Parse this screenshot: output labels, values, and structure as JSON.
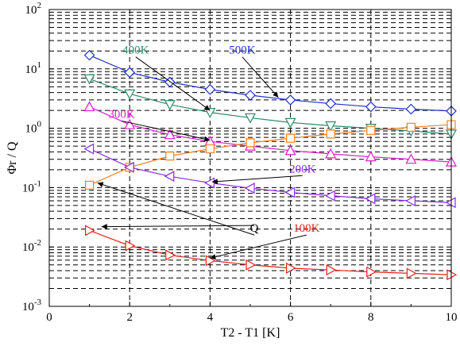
{
  "chart_data": {
    "type": "line",
    "xlabel": "T2 - T1 [K]",
    "ylabel": "Φr / Q",
    "xlim": [
      0,
      10
    ],
    "ylim": [
      0.001,
      100
    ],
    "yscale": "log",
    "grid": true,
    "grid_style": "dashed",
    "x_ticks": [
      "0",
      "2",
      "4",
      "6",
      "8",
      "10"
    ],
    "y_ticks": [
      {
        "base": "10",
        "exp": "-3",
        "value": 0.001
      },
      {
        "base": "10",
        "exp": "-2",
        "value": 0.01
      },
      {
        "base": "10",
        "exp": "-1",
        "value": 0.1
      },
      {
        "base": "10",
        "exp": "0",
        "value": 1
      },
      {
        "base": "10",
        "exp": "1",
        "value": 10
      },
      {
        "base": "10",
        "exp": "2",
        "value": 100
      }
    ],
    "x": [
      1,
      2,
      3,
      4,
      5,
      6,
      7,
      8,
      9,
      10
    ],
    "series": [
      {
        "label": "500K",
        "color": "#1f2fd0",
        "marker": "diamond",
        "values": [
          17.0,
          8.7,
          6.0,
          4.5,
          3.6,
          3.0,
          2.6,
          2.3,
          2.1,
          1.95
        ]
      },
      {
        "label": "400K",
        "color": "#2e8b6a",
        "marker": "triangle-down",
        "values": [
          6.8,
          3.8,
          2.5,
          1.85,
          1.5,
          1.25,
          1.1,
          1.0,
          0.9,
          0.8
        ]
      },
      {
        "label": "300K",
        "color": "#e01fd0",
        "marker": "triangle-up",
        "values": [
          2.3,
          1.15,
          0.78,
          0.6,
          0.5,
          0.42,
          0.37,
          0.33,
          0.3,
          0.27
        ]
      },
      {
        "label": "Q",
        "color": "#f08020",
        "marker": "square",
        "values": [
          0.11,
          0.22,
          0.34,
          0.45,
          0.57,
          0.68,
          0.8,
          0.92,
          1.04,
          1.15
        ]
      },
      {
        "label": "200K",
        "color": "#8a2be2",
        "marker": "triangle-left",
        "values": [
          0.45,
          0.22,
          0.155,
          0.12,
          0.098,
          0.083,
          0.073,
          0.065,
          0.06,
          0.056
        ]
      },
      {
        "label": "100K",
        "color": "#e8201a",
        "marker": "triangle-right",
        "values": [
          0.019,
          0.0105,
          0.0073,
          0.0059,
          0.005,
          0.0044,
          0.0041,
          0.0038,
          0.0036,
          0.0034
        ]
      }
    ],
    "annotations": [
      {
        "text": "500K",
        "color": "#1f2fd0",
        "text_at": [
          4.8,
          18.0
        ],
        "arrow_to": [
          5.7,
          3.3
        ]
      },
      {
        "text": "400K",
        "color": "#2e8b6a",
        "text_at": [
          2.15,
          18.0
        ],
        "arrow_to": [
          4.0,
          2.0
        ]
      },
      {
        "text": "300K",
        "color": "#e01fd0",
        "text_at": [
          1.8,
          1.5
        ],
        "arrow_to": [
          4.0,
          0.63
        ]
      },
      {
        "text": "200K",
        "color": "#8a2be2",
        "text_at": [
          6.3,
          0.18
        ],
        "arrow_to": [
          4.05,
          0.125
        ]
      },
      {
        "text": "Q",
        "color": "#000000",
        "text_at": [
          5.1,
          0.018
        ],
        "arrow_to": [
          1.2,
          0.12
        ],
        "arrow_to_2": [
          1.3,
          0.022
        ]
      },
      {
        "text": "100K",
        "color": "#e8201a",
        "text_at": [
          6.4,
          0.018
        ],
        "arrow_to": [
          4.0,
          0.0065
        ]
      }
    ]
  }
}
